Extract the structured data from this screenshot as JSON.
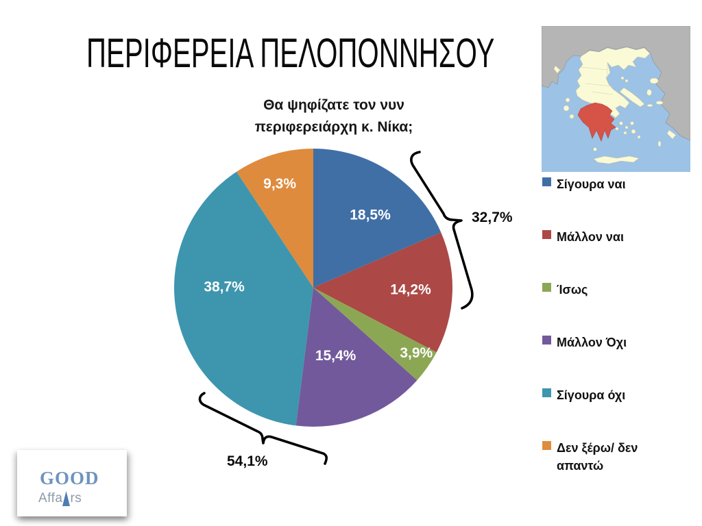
{
  "slide": {
    "title": "ΠΕΡΙΦΕΡΕΙΑ ΠΕΛΟΠΟΝΝΗΣΟΥ"
  },
  "chart_data": {
    "type": "pie",
    "title": "Θα ψηφίζατε τον νυν περιφερειάρχη κ. Νίκα;",
    "title_lines": [
      "Θα ψηφίζατε τον νυν",
      "περιφερειάρχη κ. Νίκα;"
    ],
    "categories": [
      "Σίγουρα ναι",
      "Μάλλον ναι",
      "Ίσως",
      "Μάλλον Όχι",
      "Σίγουρα όχι",
      "Δεν ξέρω/ δεν απαντώ"
    ],
    "values": [
      18.5,
      14.2,
      3.9,
      15.4,
      38.7,
      9.3
    ],
    "value_labels": [
      "18,5%",
      "14,2%",
      "3,9%",
      "15,4%",
      "38,7%",
      "9,3%"
    ],
    "colors": [
      "#406FA6",
      "#AC4845",
      "#8CA754",
      "#72599B",
      "#3D96AD",
      "#DF8B3D"
    ],
    "start_angle_deg": 0,
    "direction": "clockwise",
    "legend_position": "right",
    "grid": false,
    "label_color": "#FFFFFF",
    "label_angle_deg": [
      38.3,
      91.7,
      122.7,
      162,
      270,
      342
    ],
    "label_radius_frac": [
      0.66,
      0.7,
      0.88,
      0.52,
      0.64,
      0.78
    ],
    "annotations": [
      {
        "label": "32,7%",
        "groups": [
          "Σίγουρα ναι",
          "Μάλλον ναι"
        ],
        "side": "right"
      },
      {
        "label": "54,1%",
        "groups": [
          "Μάλλον Όχι",
          "Σίγουρα όχι"
        ],
        "side": "bottom-left"
      }
    ]
  },
  "map": {
    "region_name": "Πελοπόννησος",
    "sea_color": "#9CC2E5",
    "land_color": "#B5B5B5",
    "greece_color": "#FBFAD6",
    "highlight_color": "#D65348",
    "border_color": "#C9C7A6"
  },
  "logo": {
    "word1": "GOOD",
    "word2_prefix": "Affa",
    "word2_suffix": "rs",
    "word1_color": "#6E93BE",
    "word2_color": "#8C99AA",
    "triangle_color": "#4E7DB4"
  }
}
